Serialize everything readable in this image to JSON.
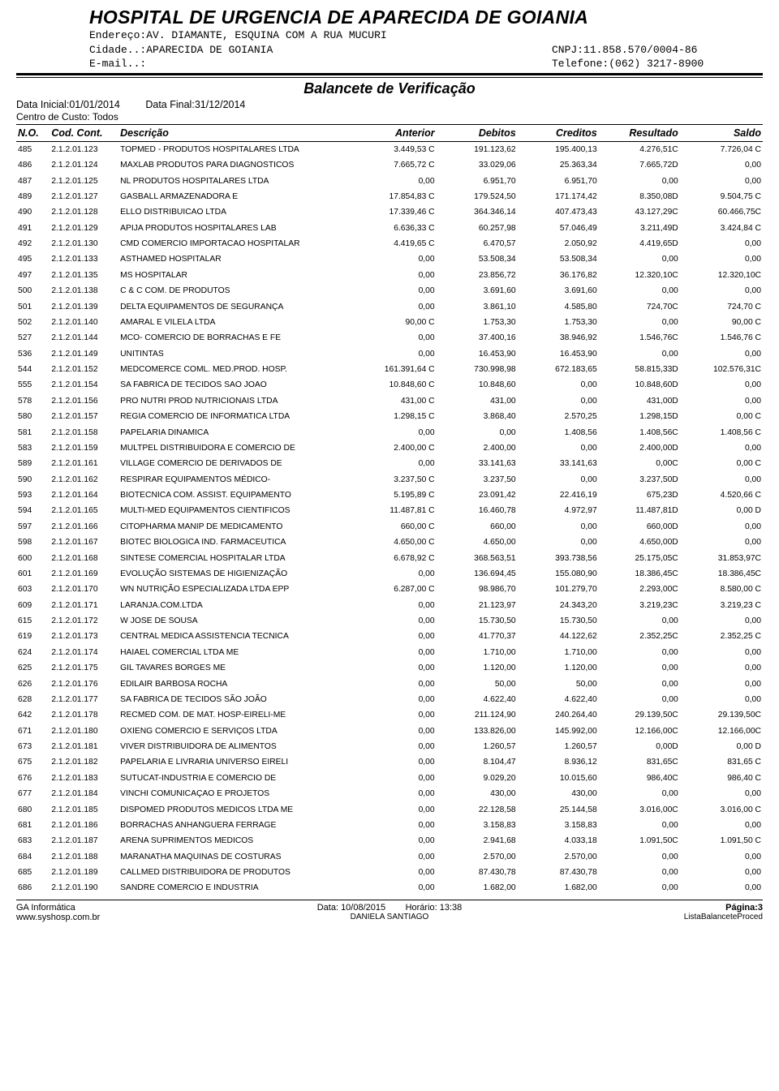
{
  "header": {
    "org": "HOSPITAL DE URGENCIA DE APARECIDA DE GOIANIA",
    "endereco_label": "Endereço:",
    "endereco": "AV. DIAMANTE,  ESQUINA COM A RUA MUCURI",
    "cidade_label": "Cidade..:",
    "cidade": "APARECIDA DE GOIANIA",
    "cnpj_label": "CNPJ:",
    "cnpj": "11.858.570/0004-86",
    "email_label": "E-mail..:",
    "email": "",
    "telefone_label": "Telefone:",
    "telefone": "(062) 3217-8900"
  },
  "report": {
    "title": "Balancete de Verificação",
    "data_inicial_label": "Data Inicial:",
    "data_inicial": "01/01/2014",
    "data_final_label": "Data Final:",
    "data_final": "31/12/2014",
    "centro": "Centro de Custo: Todos"
  },
  "columns": {
    "no": "N.O.",
    "cod": "Cod. Cont.",
    "desc": "Descrição",
    "anterior": "Anterior",
    "debitos": "Debitos",
    "creditos": "Creditos",
    "resultado": "Resultado",
    "saldo": "Saldo"
  },
  "rows": [
    {
      "no": "485",
      "cod": "2.1.2.01.123",
      "desc": "TOPMED - PRODUTOS HOSPITALARES LTDA",
      "anterior": "3.449,53 C",
      "debitos": "191.123,62",
      "creditos": "195.400,13",
      "resultado": "4.276,51C",
      "saldo": "7.726,04 C"
    },
    {
      "no": "486",
      "cod": "2.1.2.01.124",
      "desc": "MAXLAB  PRODUTOS PARA DIAGNOSTICOS",
      "anterior": "7.665,72 C",
      "debitos": "33.029,06",
      "creditos": "25.363,34",
      "resultado": "7.665,72D",
      "saldo": "0,00"
    },
    {
      "no": "487",
      "cod": "2.1.2.01.125",
      "desc": "NL PRODUTOS HOSPITALARES LTDA",
      "anterior": "0,00",
      "debitos": "6.951,70",
      "creditos": "6.951,70",
      "resultado": "0,00",
      "saldo": "0,00"
    },
    {
      "no": "489",
      "cod": "2.1.2.01.127",
      "desc": "GASBALL ARMAZENADORA E",
      "anterior": "17.854,83 C",
      "debitos": "179.524,50",
      "creditos": "171.174,42",
      "resultado": "8.350,08D",
      "saldo": "9.504,75 C"
    },
    {
      "no": "490",
      "cod": "2.1.2.01.128",
      "desc": "ELLO DISTRIBUICAO LTDA",
      "anterior": "17.339,46 C",
      "debitos": "364.346,14",
      "creditos": "407.473,43",
      "resultado": "43.127,29C",
      "saldo": "60.466,75C"
    },
    {
      "no": "491",
      "cod": "2.1.2.01.129",
      "desc": "APIJA PRODUTOS HOSPITALARES LAB",
      "anterior": "6.636,33 C",
      "debitos": "60.257,98",
      "creditos": "57.046,49",
      "resultado": "3.211,49D",
      "saldo": "3.424,84 C"
    },
    {
      "no": "492",
      "cod": "2.1.2.01.130",
      "desc": "CMD COMERCIO IMPORTACAO HOSPITALAR",
      "anterior": "4.419,65 C",
      "debitos": "6.470,57",
      "creditos": "2.050,92",
      "resultado": "4.419,65D",
      "saldo": "0,00"
    },
    {
      "no": "495",
      "cod": "2.1.2.01.133",
      "desc": "ASTHAMED HOSPITALAR",
      "anterior": "0,00",
      "debitos": "53.508,34",
      "creditos": "53.508,34",
      "resultado": "0,00",
      "saldo": "0,00"
    },
    {
      "no": "497",
      "cod": "2.1.2.01.135",
      "desc": "MS HOSPITALAR",
      "anterior": "0,00",
      "debitos": "23.856,72",
      "creditos": "36.176,82",
      "resultado": "12.320,10C",
      "saldo": "12.320,10C"
    },
    {
      "no": "500",
      "cod": "2.1.2.01.138",
      "desc": "C & C COM. DE PRODUTOS",
      "anterior": "0,00",
      "debitos": "3.691,60",
      "creditos": "3.691,60",
      "resultado": "0,00",
      "saldo": "0,00"
    },
    {
      "no": "501",
      "cod": "2.1.2.01.139",
      "desc": "DELTA EQUIPAMENTOS DE SEGURANÇA",
      "anterior": "0,00",
      "debitos": "3.861,10",
      "creditos": "4.585,80",
      "resultado": "724,70C",
      "saldo": "724,70 C"
    },
    {
      "no": "502",
      "cod": "2.1.2.01.140",
      "desc": "AMARAL E VILELA LTDA",
      "anterior": "90,00 C",
      "debitos": "1.753,30",
      "creditos": "1.753,30",
      "resultado": "0,00",
      "saldo": "90,00 C"
    },
    {
      "no": "527",
      "cod": "2.1.2.01.144",
      "desc": "MCO- COMERCIO DE BORRACHAS E FE",
      "anterior": "0,00",
      "debitos": "37.400,16",
      "creditos": "38.946,92",
      "resultado": "1.546,76C",
      "saldo": "1.546,76 C"
    },
    {
      "no": "536",
      "cod": "2.1.2.01.149",
      "desc": "UNITINTAS",
      "anterior": "0,00",
      "debitos": "16.453,90",
      "creditos": "16.453,90",
      "resultado": "0,00",
      "saldo": "0,00"
    },
    {
      "no": "544",
      "cod": "2.1.2.01.152",
      "desc": "MEDCOMERCE COML. MED.PROD. HOSP.",
      "anterior": "161.391,64 C",
      "debitos": "730.998,98",
      "creditos": "672.183,65",
      "resultado": "58.815,33D",
      "saldo": "102.576,31C"
    },
    {
      "no": "555",
      "cod": "2.1.2.01.154",
      "desc": "SA FABRICA DE TECIDOS SAO JOAO",
      "anterior": "10.848,60 C",
      "debitos": "10.848,60",
      "creditos": "0,00",
      "resultado": "10.848,60D",
      "saldo": "0,00"
    },
    {
      "no": "578",
      "cod": "2.1.2.01.156",
      "desc": "PRO NUTRI PROD NUTRICIONAIS LTDA",
      "anterior": "431,00 C",
      "debitos": "431,00",
      "creditos": "0,00",
      "resultado": "431,00D",
      "saldo": "0,00"
    },
    {
      "no": "580",
      "cod": "2.1.2.01.157",
      "desc": "REGIA COMERCIO DE INFORMATICA LTDA",
      "anterior": "1.298,15 C",
      "debitos": "3.868,40",
      "creditos": "2.570,25",
      "resultado": "1.298,15D",
      "saldo": "0,00 C"
    },
    {
      "no": "581",
      "cod": "2.1.2.01.158",
      "desc": "PAPELARIA DINAMICA",
      "anterior": "0,00",
      "debitos": "0,00",
      "creditos": "1.408,56",
      "resultado": "1.408,56C",
      "saldo": "1.408,56 C"
    },
    {
      "no": "583",
      "cod": "2.1.2.01.159",
      "desc": "MULTPEL DISTRIBUIDORA E COMERCIO DE",
      "anterior": "2.400,00 C",
      "debitos": "2.400,00",
      "creditos": "0,00",
      "resultado": "2.400,00D",
      "saldo": "0,00"
    },
    {
      "no": "589",
      "cod": "2.1.2.01.161",
      "desc": "VILLAGE COMERCIO DE DERIVADOS DE",
      "anterior": "0,00",
      "debitos": "33.141,63",
      "creditos": "33.141,63",
      "resultado": "0,00C",
      "saldo": "0,00 C"
    },
    {
      "no": "590",
      "cod": "2.1.2.01.162",
      "desc": "RESPIRAR EQUIPAMENTOS MÉDICO-",
      "anterior": "3.237,50 C",
      "debitos": "3.237,50",
      "creditos": "0,00",
      "resultado": "3.237,50D",
      "saldo": "0,00"
    },
    {
      "no": "593",
      "cod": "2.1.2.01.164",
      "desc": "BIOTECNICA COM. ASSIST. EQUIPAMENTO",
      "anterior": "5.195,89 C",
      "debitos": "23.091,42",
      "creditos": "22.416,19",
      "resultado": "675,23D",
      "saldo": "4.520,66 C"
    },
    {
      "no": "594",
      "cod": "2.1.2.01.165",
      "desc": "MULTI-MED EQUIPAMENTOS CIENTIFICOS",
      "anterior": "11.487,81 C",
      "debitos": "16.460,78",
      "creditos": "4.972,97",
      "resultado": "11.487,81D",
      "saldo": "0,00 D"
    },
    {
      "no": "597",
      "cod": "2.1.2.01.166",
      "desc": "CITOPHARMA MANIP DE MEDICAMENTO",
      "anterior": "660,00 C",
      "debitos": "660,00",
      "creditos": "0,00",
      "resultado": "660,00D",
      "saldo": "0,00"
    },
    {
      "no": "598",
      "cod": "2.1.2.01.167",
      "desc": "BIOTEC BIOLOGICA IND. FARMACEUTICA",
      "anterior": "4.650,00 C",
      "debitos": "4.650,00",
      "creditos": "0,00",
      "resultado": "4.650,00D",
      "saldo": "0,00"
    },
    {
      "no": "600",
      "cod": "2.1.2.01.168",
      "desc": "SINTESE COMERCIAL HOSPITALAR LTDA",
      "anterior": "6.678,92 C",
      "debitos": "368.563,51",
      "creditos": "393.738,56",
      "resultado": "25.175,05C",
      "saldo": "31.853,97C"
    },
    {
      "no": "601",
      "cod": "2.1.2.01.169",
      "desc": "EVOLUÇÃO SISTEMAS DE HIGIENIZAÇÃO",
      "anterior": "0,00",
      "debitos": "136.694,45",
      "creditos": "155.080,90",
      "resultado": "18.386,45C",
      "saldo": "18.386,45C"
    },
    {
      "no": "603",
      "cod": "2.1.2.01.170",
      "desc": "WN NUTRIÇÃO ESPECIALIZADA LTDA EPP",
      "anterior": "6.287,00 C",
      "debitos": "98.986,70",
      "creditos": "101.279,70",
      "resultado": "2.293,00C",
      "saldo": "8.580,00 C"
    },
    {
      "no": "609",
      "cod": "2.1.2.01.171",
      "desc": "LARANJA.COM.LTDA",
      "anterior": "0,00",
      "debitos": "21.123,97",
      "creditos": "24.343,20",
      "resultado": "3.219,23C",
      "saldo": "3.219,23 C"
    },
    {
      "no": "615",
      "cod": "2.1.2.01.172",
      "desc": "W JOSE DE SOUSA",
      "anterior": "0,00",
      "debitos": "15.730,50",
      "creditos": "15.730,50",
      "resultado": "0,00",
      "saldo": "0,00"
    },
    {
      "no": "619",
      "cod": "2.1.2.01.173",
      "desc": "CENTRAL MEDICA ASSISTENCIA TECNICA",
      "anterior": "0,00",
      "debitos": "41.770,37",
      "creditos": "44.122,62",
      "resultado": "2.352,25C",
      "saldo": "2.352,25 C"
    },
    {
      "no": "624",
      "cod": "2.1.2.01.174",
      "desc": "HAIAEL COMERCIAL LTDA ME",
      "anterior": "0,00",
      "debitos": "1.710,00",
      "creditos": "1.710,00",
      "resultado": "0,00",
      "saldo": "0,00"
    },
    {
      "no": "625",
      "cod": "2.1.2.01.175",
      "desc": "GIL TAVARES BORGES ME",
      "anterior": "0,00",
      "debitos": "1.120,00",
      "creditos": "1.120,00",
      "resultado": "0,00",
      "saldo": "0,00"
    },
    {
      "no": "626",
      "cod": "2.1.2.01.176",
      "desc": "EDILAIR BARBOSA ROCHA",
      "anterior": "0,00",
      "debitos": "50,00",
      "creditos": "50,00",
      "resultado": "0,00",
      "saldo": "0,00"
    },
    {
      "no": "628",
      "cod": "2.1.2.01.177",
      "desc": "SA FABRICA DE TECIDOS SÃO JOÃO",
      "anterior": "0,00",
      "debitos": "4.622,40",
      "creditos": "4.622,40",
      "resultado": "0,00",
      "saldo": "0,00"
    },
    {
      "no": "642",
      "cod": "2.1.2.01.178",
      "desc": "RECMED COM. DE MAT. HOSP-EIRELI-ME",
      "anterior": "0,00",
      "debitos": "211.124,90",
      "creditos": "240.264,40",
      "resultado": "29.139,50C",
      "saldo": "29.139,50C"
    },
    {
      "no": "671",
      "cod": "2.1.2.01.180",
      "desc": "OXIENG COMERCIO E SERVIÇOS LTDA",
      "anterior": "0,00",
      "debitos": "133.826,00",
      "creditos": "145.992,00",
      "resultado": "12.166,00C",
      "saldo": "12.166,00C"
    },
    {
      "no": "673",
      "cod": "2.1.2.01.181",
      "desc": "VIVER DISTRIBUIDORA DE ALIMENTOS",
      "anterior": "0,00",
      "debitos": "1.260,57",
      "creditos": "1.260,57",
      "resultado": "0,00D",
      "saldo": "0,00 D"
    },
    {
      "no": "675",
      "cod": "2.1.2.01.182",
      "desc": "PAPELARIA E LIVRARIA UNIVERSO EIRELI",
      "anterior": "0,00",
      "debitos": "8.104,47",
      "creditos": "8.936,12",
      "resultado": "831,65C",
      "saldo": "831,65 C"
    },
    {
      "no": "676",
      "cod": "2.1.2.01.183",
      "desc": "SUTUCAT-INDUSTRIA E COMERCIO DE",
      "anterior": "0,00",
      "debitos": "9.029,20",
      "creditos": "10.015,60",
      "resultado": "986,40C",
      "saldo": "986,40 C"
    },
    {
      "no": "677",
      "cod": "2.1.2.01.184",
      "desc": "VINCHI COMUNICAÇAO E PROJETOS",
      "anterior": "0,00",
      "debitos": "430,00",
      "creditos": "430,00",
      "resultado": "0,00",
      "saldo": "0,00"
    },
    {
      "no": "680",
      "cod": "2.1.2.01.185",
      "desc": "DISPOMED PRODUTOS MEDICOS LTDA ME",
      "anterior": "0,00",
      "debitos": "22.128,58",
      "creditos": "25.144,58",
      "resultado": "3.016,00C",
      "saldo": "3.016,00 C"
    },
    {
      "no": "681",
      "cod": "2.1.2.01.186",
      "desc": "BORRACHAS ANHANGUERA FERRAGE",
      "anterior": "0,00",
      "debitos": "3.158,83",
      "creditos": "3.158,83",
      "resultado": "0,00",
      "saldo": "0,00"
    },
    {
      "no": "683",
      "cod": "2.1.2.01.187",
      "desc": "ARENA SUPRIMENTOS MEDICOS",
      "anterior": "0,00",
      "debitos": "2.941,68",
      "creditos": "4.033,18",
      "resultado": "1.091,50C",
      "saldo": "1.091,50 C"
    },
    {
      "no": "684",
      "cod": "2.1.2.01.188",
      "desc": "MARANATHA MAQUINAS DE COSTURAS",
      "anterior": "0,00",
      "debitos": "2.570,00",
      "creditos": "2.570,00",
      "resultado": "0,00",
      "saldo": "0,00"
    },
    {
      "no": "685",
      "cod": "2.1.2.01.189",
      "desc": "CALLMED DISTRIBUIDORA  DE PRODUTOS",
      "anterior": "0,00",
      "debitos": "87.430,78",
      "creditos": "87.430,78",
      "resultado": "0,00",
      "saldo": "0,00"
    },
    {
      "no": "686",
      "cod": "2.1.2.01.190",
      "desc": "SANDRE COMERCIO E INDUSTRIA",
      "anterior": "0,00",
      "debitos": "1.682,00",
      "creditos": "1.682,00",
      "resultado": "0,00",
      "saldo": "0,00"
    }
  ],
  "footer": {
    "vendor": "GA Informática",
    "site": "www.syshosp.com.br",
    "data_label": "Data: ",
    "data": "10/08/2015",
    "horario_label": "Horário: ",
    "horario": "13:38",
    "user": "DANIELA SANTIAGO",
    "pagina_label": "Página:",
    "pagina": "3",
    "report_id": "ListaBalanceteProced"
  }
}
